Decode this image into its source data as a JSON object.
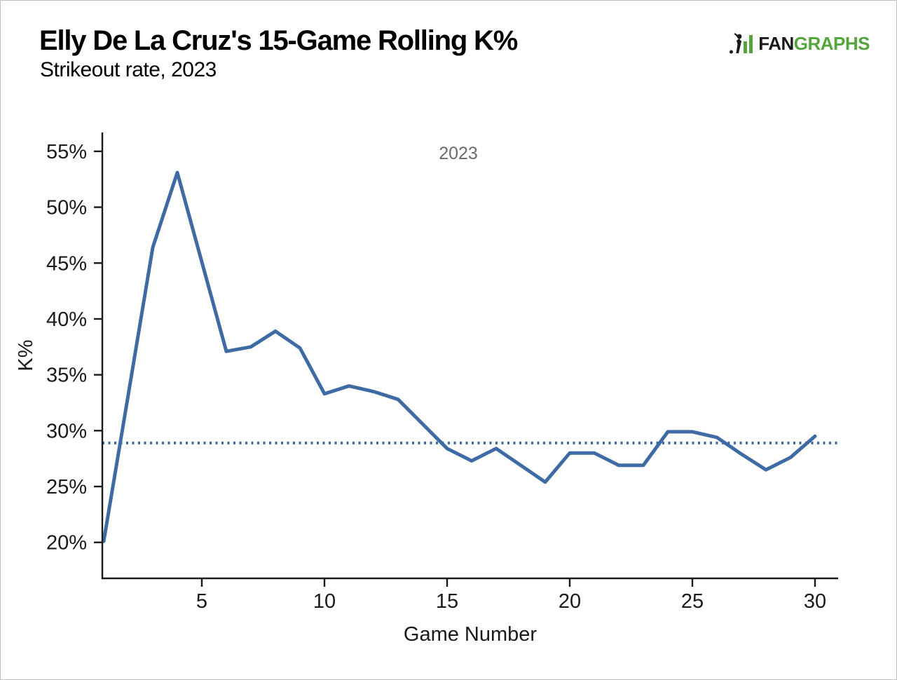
{
  "header": {
    "title": "Elly De La Cruz's 15-Game Rolling K%",
    "subtitle": "Strikeout rate, 2023"
  },
  "logo": {
    "fan": "FAN",
    "graphs": "GRAPHS",
    "icon_color_dark": "#1a1a1a",
    "icon_color_green": "#54a53c"
  },
  "chart_data": {
    "type": "line",
    "title": "Elly De La Cruz's 15-Game Rolling K%",
    "subtitle": "Strikeout rate, 2023",
    "xlabel": "Game Number",
    "ylabel": "K%",
    "series_label": "2023",
    "series_label_color": "#6b6b6b",
    "x": [
      1,
      2,
      3,
      4,
      5,
      6,
      7,
      8,
      9,
      10,
      11,
      12,
      13,
      14,
      15,
      16,
      17,
      18,
      19,
      20,
      21,
      22,
      23,
      24,
      25,
      26,
      27,
      28,
      29,
      30
    ],
    "series": [
      {
        "name": "2023",
        "values": [
          20.1,
          33.2,
          46.4,
          53.1,
          45.1,
          37.1,
          37.5,
          38.9,
          37.4,
          33.3,
          34.0,
          33.5,
          32.8,
          30.6,
          28.4,
          27.3,
          28.4,
          26.9,
          25.4,
          28.0,
          28.0,
          26.9,
          26.9,
          29.9,
          29.9,
          29.4,
          27.9,
          26.5,
          27.6,
          29.5
        ]
      }
    ],
    "reference_line": {
      "value": 28.9,
      "style": "dotted"
    },
    "xticks": [
      5,
      10,
      15,
      20,
      25,
      30
    ],
    "yticks": [
      20,
      25,
      30,
      35,
      40,
      45,
      50,
      55
    ],
    "ytick_labels": [
      "20%",
      "25%",
      "30%",
      "35%",
      "40%",
      "45%",
      "50%",
      "55%"
    ],
    "xlim": [
      0.94,
      31
    ],
    "ylim": [
      16.8,
      56.7
    ],
    "grid": false,
    "legend_position": "top-center-inside",
    "line_color": "#3e6ba3",
    "axis_color": "#1a1a1a",
    "background": "#ffffff"
  }
}
